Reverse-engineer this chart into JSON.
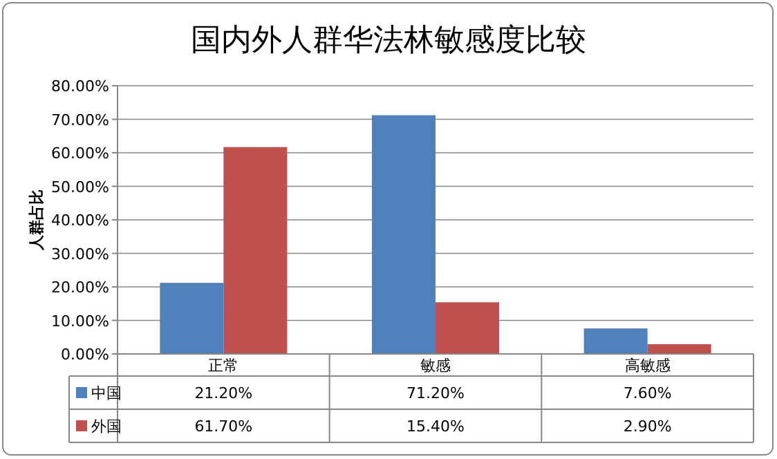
{
  "chart_data": {
    "type": "bar",
    "title": "国内外人群华法林敏感度比较",
    "ylabel": "人群占比",
    "categories": [
      "正常",
      "敏感",
      "高敏感"
    ],
    "series": [
      {
        "name": "中国",
        "color": "#4f81bd",
        "values": [
          21.2,
          71.2,
          7.6
        ],
        "value_labels": [
          "21.20%",
          "71.20%",
          "7.60%"
        ]
      },
      {
        "name": "外国",
        "color": "#c0504d",
        "values": [
          61.7,
          15.4,
          2.9
        ],
        "value_labels": [
          "61.70%",
          "15.40%",
          "2.90%"
        ]
      }
    ],
    "ylim": [
      0,
      80
    ],
    "yticks": [
      {
        "value": 0,
        "label": "0.00%"
      },
      {
        "value": 10,
        "label": "10.00%"
      },
      {
        "value": 20,
        "label": "20.00%"
      },
      {
        "value": 30,
        "label": "30.00%"
      },
      {
        "value": 40,
        "label": "40.00%"
      },
      {
        "value": 50,
        "label": "50.00%"
      },
      {
        "value": 60,
        "label": "60.00%"
      },
      {
        "value": 70,
        "label": "70.00%"
      },
      {
        "value": 80,
        "label": "80.00%"
      }
    ],
    "grid": "y",
    "legend": "bottom left"
  }
}
